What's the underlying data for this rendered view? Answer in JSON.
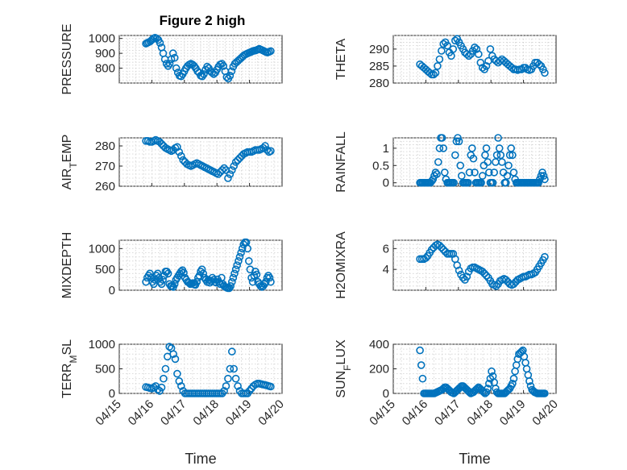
{
  "figure": {
    "xlabel": "Time"
  },
  "style": {
    "marker_color": "#0072BD",
    "axis_color": "#262626",
    "grid_color": "#d0d0d0"
  },
  "x_ticks": [
    "04/15",
    "04/16",
    "04/17",
    "04/18",
    "04/19",
    "04/20"
  ],
  "chart_data": [
    {
      "type": "scatter",
      "title": "Figure 2 high",
      "ylabel": "PRESSURE",
      "xlim": [
        0,
        5
      ],
      "ylim": [
        700,
        1020
      ],
      "yticks": [
        800,
        900,
        1000
      ],
      "grid": true,
      "x": [
        0.82,
        0.86,
        0.9,
        0.95,
        1.0,
        1.05,
        1.1,
        1.15,
        1.2,
        1.25,
        1.3,
        1.35,
        1.4,
        1.45,
        1.5,
        1.55,
        1.6,
        1.65,
        1.7,
        1.75,
        1.8,
        1.85,
        1.9,
        1.95,
        2.0,
        2.05,
        2.1,
        2.15,
        2.2,
        2.25,
        2.3,
        2.35,
        2.4,
        2.45,
        2.5,
        2.55,
        2.6,
        2.65,
        2.7,
        2.75,
        2.8,
        2.85,
        2.9,
        2.95,
        3.0,
        3.05,
        3.1,
        3.15,
        3.2,
        3.25,
        3.3,
        3.35,
        3.4,
        3.45,
        3.5,
        3.55,
        3.6,
        3.65,
        3.7,
        3.75,
        3.8,
        3.85,
        3.9,
        3.95,
        4.0,
        4.05,
        4.1,
        4.15,
        4.2,
        4.25,
        4.3,
        4.35,
        4.4,
        4.45,
        4.5,
        4.55,
        4.6,
        4.65
      ],
      "y": [
        965,
        970,
        975,
        980,
        990,
        1000,
        1005,
        1000,
        990,
        970,
        940,
        900,
        860,
        830,
        815,
        830,
        860,
        900,
        870,
        800,
        770,
        750,
        745,
        760,
        780,
        800,
        815,
        825,
        830,
        825,
        815,
        800,
        780,
        770,
        750,
        745,
        760,
        790,
        810,
        800,
        780,
        770,
        760,
        770,
        790,
        810,
        825,
        830,
        815,
        780,
        740,
        730,
        750,
        780,
        810,
        830,
        840,
        850,
        860,
        870,
        880,
        890,
        895,
        900,
        905,
        910,
        915,
        918,
        920,
        925,
        930,
        925,
        920,
        915,
        910,
        905,
        910,
        915
      ]
    },
    {
      "type": "scatter",
      "title": "",
      "ylabel": "THETA",
      "xlim": [
        0,
        5
      ],
      "ylim": [
        280,
        294
      ],
      "yticks": [
        280,
        285,
        290
      ],
      "grid": true,
      "x": [
        0.82,
        0.88,
        0.94,
        1.0,
        1.06,
        1.12,
        1.18,
        1.24,
        1.3,
        1.36,
        1.42,
        1.48,
        1.54,
        1.6,
        1.66,
        1.72,
        1.78,
        1.84,
        1.9,
        1.96,
        2.02,
        2.08,
        2.14,
        2.2,
        2.26,
        2.32,
        2.38,
        2.44,
        2.5,
        2.56,
        2.62,
        2.68,
        2.74,
        2.8,
        2.86,
        2.92,
        2.98,
        3.04,
        3.1,
        3.16,
        3.22,
        3.28,
        3.34,
        3.4,
        3.46,
        3.52,
        3.58,
        3.64,
        3.7,
        3.76,
        3.82,
        3.88,
        3.94,
        4.0,
        4.06,
        4.12,
        4.18,
        4.24,
        4.3,
        4.36,
        4.42,
        4.48,
        4.54,
        4.6,
        4.65
      ],
      "y": [
        285.5,
        285.0,
        284.5,
        284.0,
        283.5,
        283.0,
        282.5,
        282.5,
        283.0,
        285.0,
        287.0,
        289.5,
        291.5,
        292.0,
        291.0,
        289.0,
        288.0,
        290.0,
        292.5,
        293.0,
        292.0,
        291.0,
        290.0,
        289.0,
        288.5,
        288.0,
        288.5,
        289.5,
        290.5,
        290.0,
        288.5,
        286.0,
        284.5,
        284.0,
        285.0,
        286.5,
        290.0,
        288.0,
        287.0,
        286.5,
        286.0,
        286.5,
        287.0,
        286.5,
        286.0,
        285.5,
        285.0,
        284.5,
        284.0,
        284.0,
        283.8,
        284.0,
        284.0,
        284.5,
        284.5,
        284.0,
        283.8,
        284.0,
        285.0,
        286.0,
        286.0,
        285.5,
        285.0,
        284.0,
        283.0
      ]
    },
    {
      "type": "scatter",
      "title": "",
      "ylabel": "AIR_TEMP",
      "xlim": [
        0,
        5
      ],
      "ylim": [
        260,
        284
      ],
      "yticks": [
        260,
        270,
        280
      ],
      "grid": true,
      "x": [
        0.82,
        0.88,
        0.94,
        1.0,
        1.06,
        1.12,
        1.18,
        1.24,
        1.3,
        1.36,
        1.42,
        1.48,
        1.54,
        1.6,
        1.66,
        1.72,
        1.78,
        1.84,
        1.9,
        1.96,
        2.02,
        2.08,
        2.14,
        2.2,
        2.26,
        2.32,
        2.38,
        2.44,
        2.5,
        2.56,
        2.62,
        2.68,
        2.74,
        2.8,
        2.86,
        2.92,
        2.98,
        3.04,
        3.1,
        3.16,
        3.22,
        3.28,
        3.34,
        3.4,
        3.46,
        3.52,
        3.58,
        3.64,
        3.7,
        3.76,
        3.82,
        3.88,
        3.94,
        4.0,
        4.06,
        4.12,
        4.18,
        4.24,
        4.3,
        4.36,
        4.42,
        4.48,
        4.54,
        4.6,
        4.65
      ],
      "y": [
        282.5,
        282.5,
        282.0,
        282.0,
        282.5,
        283.0,
        282.5,
        282.0,
        281.0,
        280.0,
        279.0,
        278.5,
        278.0,
        277.5,
        278.0,
        279.0,
        279.5,
        277.0,
        275.0,
        273.0,
        272.0,
        271.0,
        270.5,
        270.0,
        270.5,
        271.0,
        271.5,
        271.0,
        270.5,
        270.0,
        269.5,
        269.0,
        268.5,
        268.0,
        267.5,
        267.0,
        266.5,
        266.0,
        267.0,
        268.0,
        269.0,
        268.0,
        264.0,
        266.0,
        268.0,
        270.0,
        272.0,
        273.0,
        274.0,
        275.0,
        276.0,
        276.5,
        277.0,
        277.0,
        277.0,
        277.5,
        278.0,
        278.0,
        278.0,
        278.5,
        279.0,
        280.0,
        278.0,
        277.0,
        277.5
      ]
    },
    {
      "type": "scatter",
      "title": "",
      "ylabel": "RAINFALL",
      "xlim": [
        0,
        5
      ],
      "ylim": [
        -0.1,
        1.3
      ],
      "yticks": [
        0,
        0.5,
        1
      ],
      "grid": true,
      "x": [
        0.82,
        0.86,
        0.9,
        0.94,
        0.98,
        1.02,
        1.06,
        1.1,
        1.14,
        1.18,
        1.22,
        1.26,
        1.3,
        1.34,
        1.38,
        1.42,
        1.46,
        1.5,
        1.54,
        1.58,
        1.62,
        1.66,
        1.7,
        1.74,
        1.78,
        1.82,
        1.86,
        1.9,
        1.94,
        1.98,
        2.02,
        2.06,
        2.1,
        2.14,
        2.18,
        2.22,
        2.26,
        2.3,
        2.34,
        2.38,
        2.42,
        2.46,
        2.5,
        2.54,
        2.58,
        2.62,
        2.66,
        2.7,
        2.74,
        2.78,
        2.82,
        2.86,
        2.9,
        2.94,
        2.98,
        3.02,
        3.06,
        3.1,
        3.14,
        3.18,
        3.22,
        3.26,
        3.3,
        3.34,
        3.38,
        3.42,
        3.46,
        3.5,
        3.54,
        3.58,
        3.62,
        3.66,
        3.7,
        3.74,
        3.78,
        3.82,
        3.86,
        3.9,
        3.94,
        3.98,
        4.02,
        4.06,
        4.1,
        4.14,
        4.18,
        4.22,
        4.26,
        4.3,
        4.34,
        4.38,
        4.42,
        4.46,
        4.5,
        4.54,
        4.58,
        4.62,
        4.65
      ],
      "y": [
        0,
        0,
        0,
        0,
        0,
        0,
        0,
        0,
        0,
        0.05,
        0.1,
        0.2,
        0.3,
        0.25,
        0.6,
        1.0,
        1.3,
        1.3,
        1.0,
        0.3,
        0.1,
        0,
        0,
        0,
        0,
        0,
        0,
        0.8,
        1.2,
        1.3,
        1.2,
        0.5,
        0.2,
        0,
        0,
        0,
        0,
        0,
        0.3,
        0.8,
        1.0,
        0.7,
        0.3,
        0,
        0,
        0,
        0,
        0,
        0.2,
        0.5,
        0.8,
        1.0,
        0.6,
        0.3,
        0,
        0,
        0,
        0.3,
        0.6,
        0.8,
        1.3,
        1.0,
        0.8,
        0.6,
        0.3,
        0,
        0,
        0.2,
        0.5,
        0.8,
        1.0,
        0.8,
        0.3,
        0.1,
        0,
        0,
        0,
        0,
        0,
        0,
        0,
        0,
        0,
        0,
        0,
        0,
        0,
        0,
        0,
        0,
        0,
        0,
        0.1,
        0.2,
        0.3,
        0.2,
        0.1
      ]
    },
    {
      "type": "scatter",
      "title": "",
      "ylabel": "MIXDEPTH",
      "xlim": [
        0,
        5
      ],
      "ylim": [
        0,
        1200
      ],
      "yticks": [
        0,
        500,
        1000
      ],
      "grid": true,
      "x": [
        0.82,
        0.86,
        0.9,
        0.94,
        0.98,
        1.02,
        1.06,
        1.1,
        1.14,
        1.18,
        1.22,
        1.26,
        1.3,
        1.34,
        1.38,
        1.42,
        1.46,
        1.5,
        1.54,
        1.58,
        1.62,
        1.66,
        1.7,
        1.74,
        1.78,
        1.82,
        1.86,
        1.9,
        1.94,
        1.98,
        2.02,
        2.06,
        2.1,
        2.14,
        2.18,
        2.22,
        2.26,
        2.3,
        2.34,
        2.38,
        2.42,
        2.46,
        2.5,
        2.54,
        2.58,
        2.62,
        2.66,
        2.7,
        2.74,
        2.78,
        2.82,
        2.86,
        2.9,
        2.94,
        2.98,
        3.02,
        3.06,
        3.1,
        3.14,
        3.18,
        3.22,
        3.26,
        3.3,
        3.34,
        3.38,
        3.42,
        3.46,
        3.5,
        3.54,
        3.58,
        3.62,
        3.66,
        3.7,
        3.74,
        3.78,
        3.82,
        3.86,
        3.9,
        3.94,
        3.98,
        4.02,
        4.06,
        4.1,
        4.14,
        4.18,
        4.22,
        4.26,
        4.3,
        4.34,
        4.38,
        4.42,
        4.46,
        4.5,
        4.54,
        4.58,
        4.62,
        4.65
      ],
      "y": [
        200,
        300,
        350,
        400,
        300,
        200,
        150,
        250,
        350,
        400,
        300,
        200,
        150,
        250,
        350,
        450,
        450,
        400,
        150,
        100,
        100,
        80,
        150,
        250,
        300,
        350,
        400,
        450,
        480,
        420,
        300,
        250,
        200,
        180,
        150,
        160,
        170,
        140,
        130,
        200,
        300,
        350,
        450,
        500,
        400,
        300,
        250,
        200,
        250,
        180,
        220,
        300,
        250,
        200,
        180,
        260,
        200,
        150,
        300,
        150,
        100,
        80,
        60,
        50,
        50,
        100,
        200,
        300,
        400,
        500,
        600,
        700,
        800,
        900,
        1000,
        1100,
        1150,
        1150,
        1000,
        700,
        500,
        300,
        200,
        350,
        450,
        380,
        200,
        150,
        100,
        80,
        100,
        150,
        200,
        300,
        350,
        300,
        200
      ]
    },
    {
      "type": "scatter",
      "title": "",
      "ylabel": "H2OMIXRA",
      "xlim": [
        0,
        5
      ],
      "ylim": [
        2,
        6.8
      ],
      "yticks": [
        4,
        6
      ],
      "grid": true,
      "x": [
        0.82,
        0.88,
        0.94,
        1.0,
        1.06,
        1.12,
        1.18,
        1.24,
        1.3,
        1.36,
        1.42,
        1.48,
        1.54,
        1.6,
        1.66,
        1.72,
        1.78,
        1.84,
        1.9,
        1.96,
        2.02,
        2.08,
        2.14,
        2.2,
        2.26,
        2.32,
        2.38,
        2.44,
        2.5,
        2.56,
        2.62,
        2.68,
        2.74,
        2.8,
        2.86,
        2.92,
        2.98,
        3.04,
        3.1,
        3.16,
        3.22,
        3.28,
        3.34,
        3.4,
        3.46,
        3.52,
        3.58,
        3.64,
        3.7,
        3.76,
        3.82,
        3.88,
        3.94,
        4.0,
        4.06,
        4.12,
        4.18,
        4.24,
        4.3,
        4.36,
        4.42,
        4.48,
        4.54,
        4.6,
        4.65
      ],
      "y": [
        5.0,
        5.0,
        5.0,
        5.1,
        5.3,
        5.6,
        5.9,
        6.1,
        6.3,
        6.4,
        6.3,
        6.1,
        5.9,
        5.7,
        5.5,
        5.5,
        5.5,
        5.5,
        5.0,
        4.4,
        3.9,
        3.5,
        3.2,
        3.0,
        3.3,
        3.8,
        4.1,
        4.2,
        4.2,
        4.1,
        4.0,
        3.9,
        3.8,
        3.6,
        3.4,
        3.2,
        2.9,
        2.6,
        2.5,
        2.4,
        2.6,
        2.9,
        3.0,
        3.1,
        3.0,
        2.8,
        2.6,
        2.5,
        2.6,
        2.8,
        3.0,
        3.1,
        3.2,
        3.3,
        3.3,
        3.4,
        3.5,
        3.5,
        3.6,
        3.7,
        4.0,
        4.3,
        4.6,
        4.9,
        5.2
      ]
    },
    {
      "type": "scatter",
      "title": "",
      "ylabel": "TERR_MSL",
      "xlim": [
        0,
        5
      ],
      "ylim": [
        0,
        1000
      ],
      "yticks": [
        0,
        500,
        1000
      ],
      "grid": true,
      "x": [
        0.82,
        0.88,
        0.94,
        1.0,
        1.06,
        1.12,
        1.18,
        1.24,
        1.3,
        1.36,
        1.42,
        1.48,
        1.54,
        1.6,
        1.66,
        1.72,
        1.78,
        1.84,
        1.9,
        1.96,
        2.02,
        2.08,
        2.14,
        2.2,
        2.26,
        2.32,
        2.38,
        2.44,
        2.5,
        2.56,
        2.62,
        2.68,
        2.74,
        2.8,
        2.86,
        2.92,
        2.98,
        3.04,
        3.1,
        3.16,
        3.22,
        3.28,
        3.34,
        3.4,
        3.46,
        3.52,
        3.58,
        3.64,
        3.7,
        3.76,
        3.82,
        3.88,
        3.94,
        4.0,
        4.06,
        4.12,
        4.18,
        4.24,
        4.3,
        4.36,
        4.42,
        4.48,
        4.54,
        4.6,
        4.65
      ],
      "y": [
        130,
        120,
        110,
        100,
        120,
        150,
        80,
        50,
        120,
        300,
        500,
        750,
        950,
        920,
        800,
        700,
        400,
        250,
        150,
        50,
        0,
        0,
        0,
        0,
        0,
        0,
        0,
        0,
        0,
        0,
        0,
        0,
        0,
        0,
        0,
        0,
        0,
        0,
        0,
        0,
        50,
        150,
        300,
        500,
        850,
        500,
        300,
        150,
        50,
        0,
        0,
        0,
        0,
        50,
        100,
        150,
        180,
        200,
        200,
        190,
        180,
        170,
        160,
        150,
        140
      ]
    },
    {
      "type": "scatter",
      "title": "",
      "ylabel": "SUN_FLUX",
      "xlim": [
        0,
        5
      ],
      "ylim": [
        0,
        400
      ],
      "yticks": [
        0,
        200,
        400
      ],
      "grid": true,
      "x": [
        0.82,
        0.86,
        0.9,
        0.94,
        0.98,
        1.02,
        1.06,
        1.1,
        1.14,
        1.18,
        1.22,
        1.26,
        1.3,
        1.34,
        1.38,
        1.42,
        1.46,
        1.5,
        1.54,
        1.58,
        1.62,
        1.66,
        1.7,
        1.74,
        1.78,
        1.82,
        1.86,
        1.9,
        1.94,
        1.98,
        2.02,
        2.06,
        2.1,
        2.14,
        2.18,
        2.22,
        2.26,
        2.3,
        2.34,
        2.38,
        2.42,
        2.46,
        2.5,
        2.54,
        2.58,
        2.62,
        2.66,
        2.7,
        2.74,
        2.78,
        2.82,
        2.86,
        2.9,
        2.94,
        2.98,
        3.02,
        3.06,
        3.1,
        3.14,
        3.18,
        3.22,
        3.26,
        3.3,
        3.34,
        3.38,
        3.42,
        3.46,
        3.5,
        3.54,
        3.58,
        3.62,
        3.66,
        3.7,
        3.74,
        3.78,
        3.82,
        3.86,
        3.9,
        3.94,
        3.98,
        4.02,
        4.06,
        4.1,
        4.14,
        4.18,
        4.22,
        4.26,
        4.3,
        4.34,
        4.38,
        4.42,
        4.46,
        4.5,
        4.54,
        4.58,
        4.62,
        4.65
      ],
      "y": [
        350,
        230,
        120,
        0,
        0,
        0,
        0,
        0,
        0,
        0,
        0,
        0,
        5,
        10,
        15,
        20,
        25,
        30,
        40,
        50,
        50,
        40,
        30,
        20,
        10,
        5,
        0,
        10,
        20,
        30,
        40,
        50,
        60,
        60,
        50,
        40,
        30,
        20,
        10,
        0,
        5,
        10,
        20,
        30,
        40,
        50,
        40,
        30,
        20,
        10,
        0,
        10,
        40,
        80,
        120,
        180,
        140,
        90,
        40,
        10,
        0,
        0,
        0,
        0,
        0,
        0,
        10,
        20,
        30,
        40,
        60,
        80,
        120,
        180,
        230,
        280,
        320,
        330,
        340,
        350,
        300,
        250,
        200,
        150,
        100,
        60,
        30,
        20,
        10,
        5,
        0,
        0,
        0,
        0,
        0,
        0,
        0
      ]
    }
  ]
}
